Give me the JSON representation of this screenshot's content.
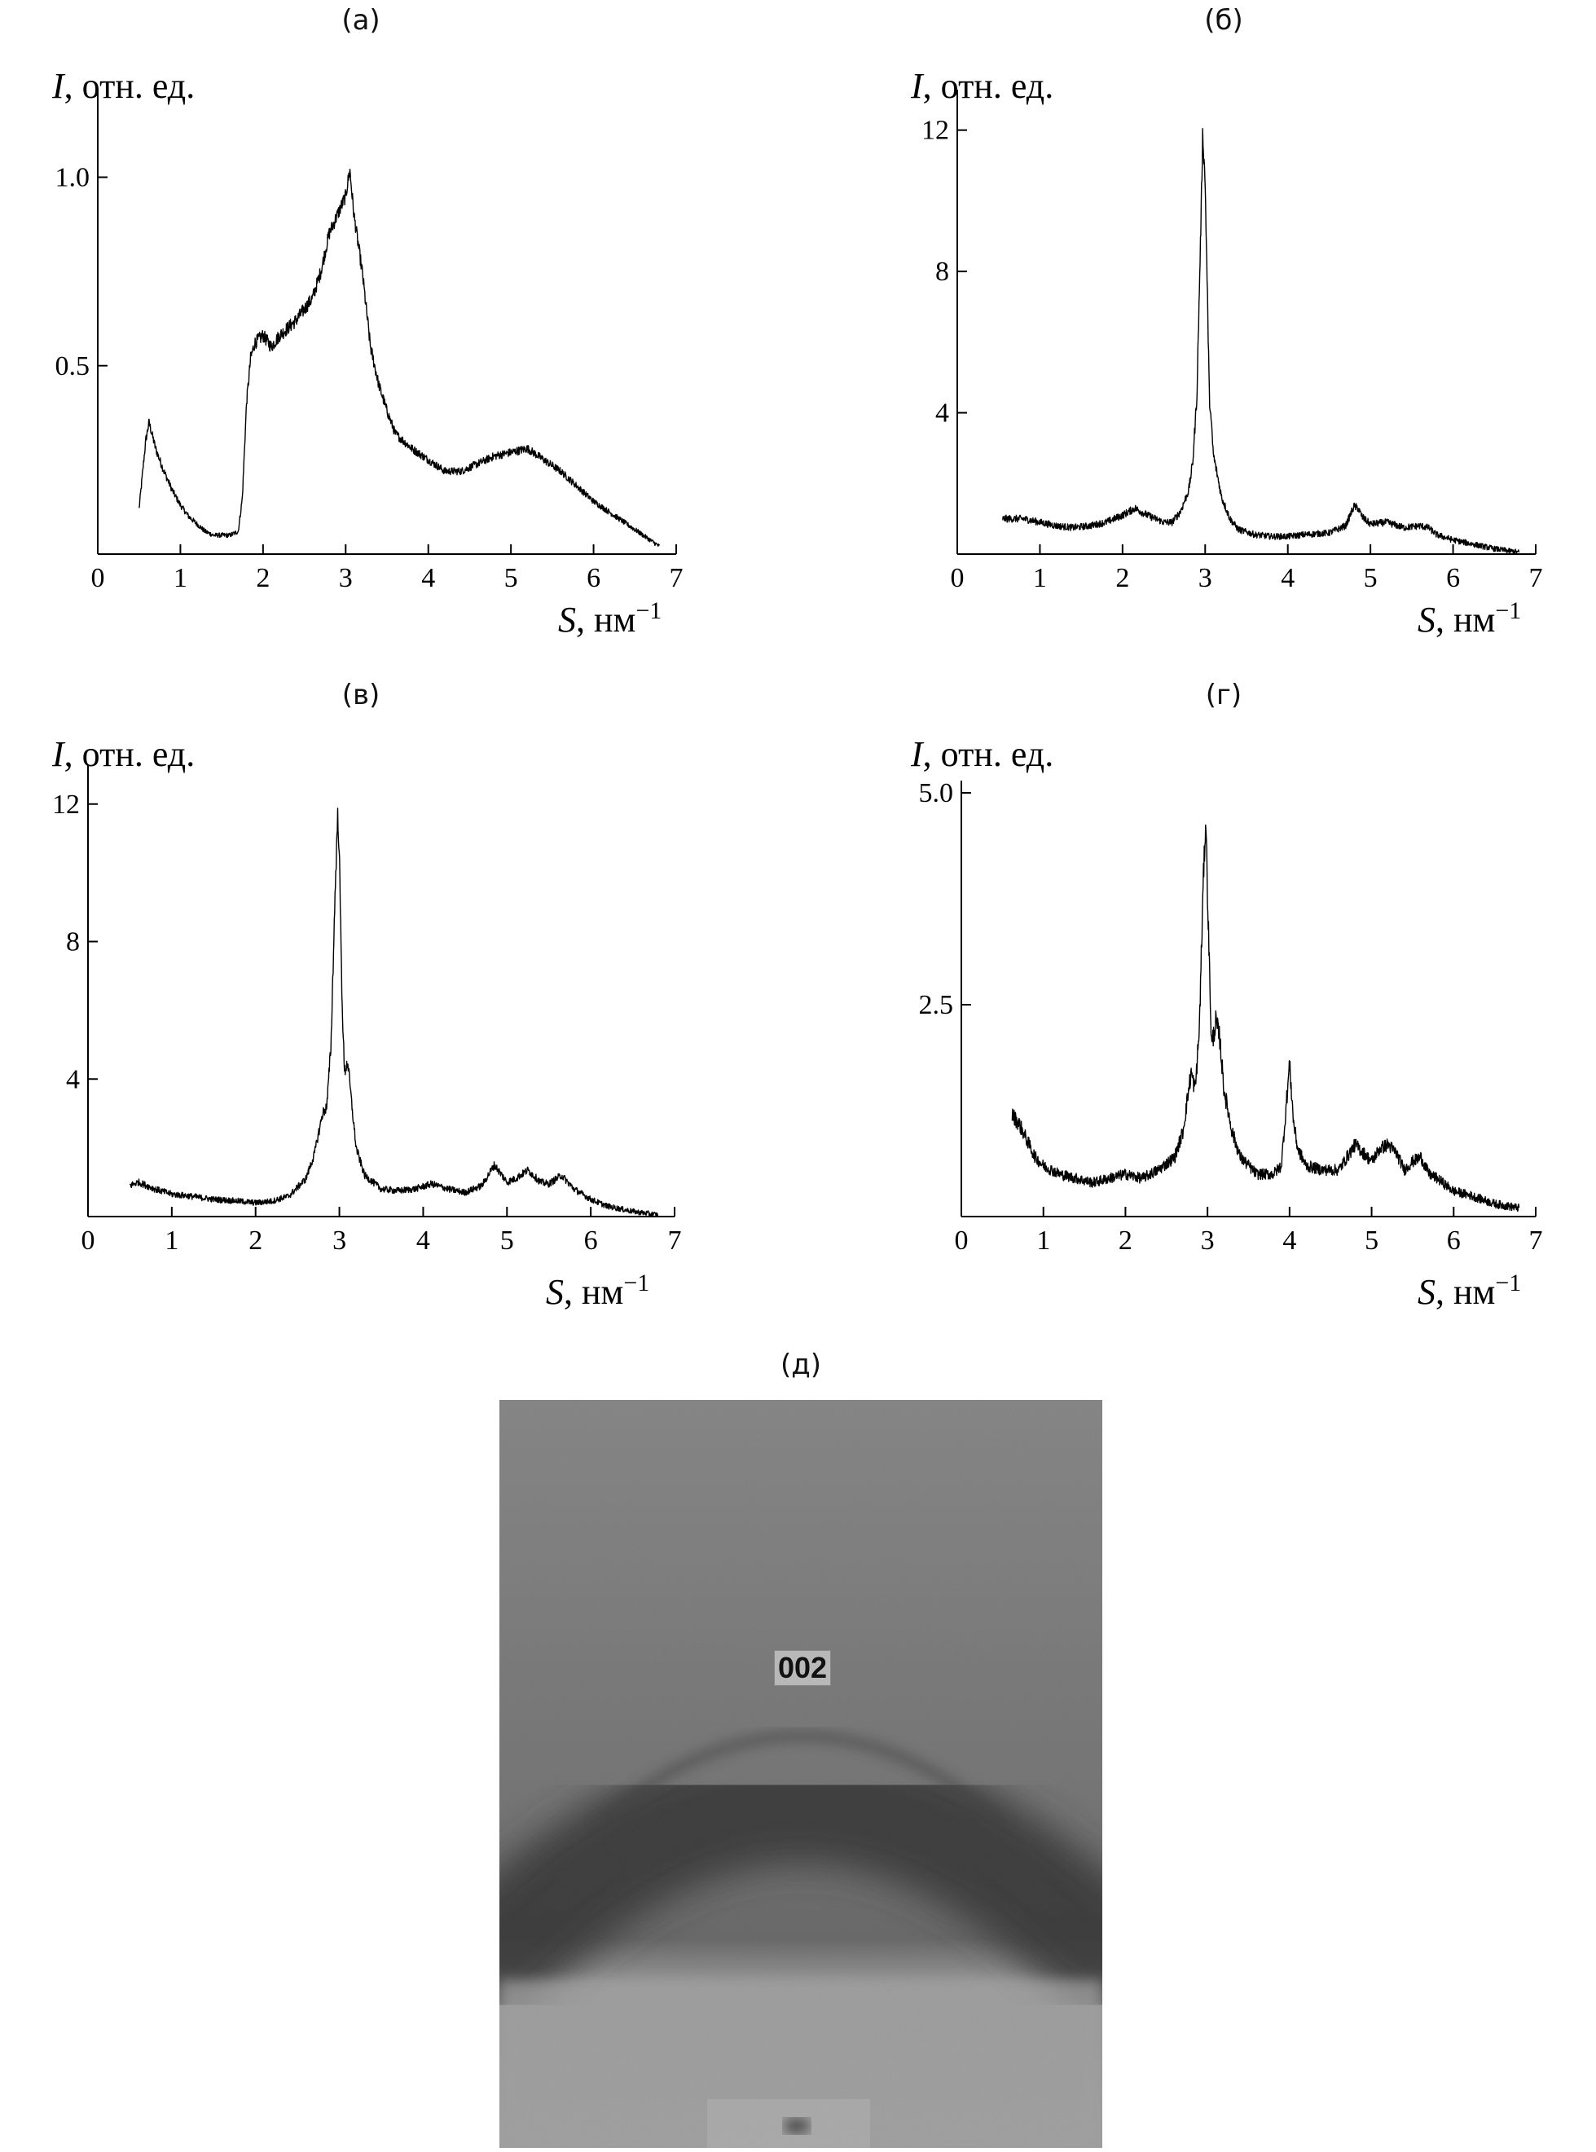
{
  "panels": [
    {
      "id": "a",
      "label": "(а)",
      "ylabel_italic": "I",
      "ylabel_rest": ", отн. ед.",
      "xlabel_italic": "S",
      "xlabel_rest": ", нм",
      "xlabel_sup": "−1",
      "chart_data": {
        "type": "line",
        "xlim": [
          0,
          7
        ],
        "ylim": [
          0,
          1.2
        ],
        "xticks": [
          "0",
          "1",
          "2",
          "3",
          "4",
          "5",
          "6",
          "7"
        ],
        "yticks": [
          {
            "v": 0.5,
            "label": "0.5"
          },
          {
            "v": 1.0,
            "label": "1.0"
          }
        ],
        "noise": 0.09,
        "series": [
          {
            "x": [
              0.5,
              0.58,
              0.62,
              0.7,
              0.8,
              0.9,
              1.0,
              1.1,
              1.2,
              1.3,
              1.4,
              1.5,
              1.6,
              1.7,
              1.75,
              1.8,
              1.85,
              1.9,
              2.0,
              2.1,
              2.2,
              2.3,
              2.4,
              2.5,
              2.6,
              2.7,
              2.8,
              2.9,
              3.0,
              3.05,
              3.1,
              3.2,
              3.3,
              3.4,
              3.5,
              3.6,
              3.7,
              3.8,
              4.0,
              4.2,
              4.4,
              4.6,
              4.8,
              5.0,
              5.2,
              5.4,
              5.6,
              5.8,
              6.0,
              6.2,
              6.4,
              6.6,
              6.8
            ],
            "y": [
              0.12,
              0.3,
              0.35,
              0.28,
              0.22,
              0.17,
              0.13,
              0.1,
              0.08,
              0.06,
              0.05,
              0.05,
              0.05,
              0.06,
              0.15,
              0.4,
              0.52,
              0.56,
              0.58,
              0.55,
              0.58,
              0.6,
              0.62,
              0.65,
              0.68,
              0.75,
              0.85,
              0.9,
              0.95,
              1.02,
              0.9,
              0.75,
              0.55,
              0.45,
              0.38,
              0.32,
              0.3,
              0.28,
              0.25,
              0.22,
              0.22,
              0.24,
              0.26,
              0.27,
              0.28,
              0.25,
              0.22,
              0.18,
              0.14,
              0.11,
              0.08,
              0.05,
              0.02
            ]
          }
        ]
      }
    },
    {
      "id": "b",
      "label": "(б)",
      "ylabel_italic": "I",
      "ylabel_rest": ", отн. ед.",
      "xlabel_italic": "S",
      "xlabel_rest": ", нм",
      "xlabel_sup": "−1",
      "chart_data": {
        "type": "line",
        "xlim": [
          0,
          7
        ],
        "ylim": [
          0,
          12.8
        ],
        "xticks": [
          "0",
          "1",
          "2",
          "3",
          "4",
          "5",
          "6",
          "7"
        ],
        "yticks": [
          {
            "v": 4,
            "label": "4"
          },
          {
            "v": 8,
            "label": "8"
          },
          {
            "v": 12,
            "label": "12"
          }
        ],
        "noise": 0.12,
        "series": [
          {
            "x": [
              0.55,
              0.8,
              1.0,
              1.2,
              1.4,
              1.6,
              1.8,
              2.0,
              2.15,
              2.3,
              2.5,
              2.6,
              2.7,
              2.8,
              2.85,
              2.9,
              2.95,
              2.97,
              3.0,
              3.03,
              3.05,
              3.1,
              3.15,
              3.2,
              3.3,
              3.4,
              3.6,
              3.8,
              4.0,
              4.2,
              4.5,
              4.7,
              4.8,
              4.85,
              4.9,
              5.0,
              5.2,
              5.4,
              5.6,
              5.7,
              5.8,
              6.0,
              6.2,
              6.5,
              6.8
            ],
            "y": [
              1.0,
              1.0,
              0.9,
              0.8,
              0.75,
              0.8,
              0.9,
              1.1,
              1.3,
              1.1,
              0.9,
              0.9,
              1.2,
              1.8,
              2.6,
              4.5,
              9.5,
              11.9,
              10.5,
              7.0,
              4.5,
              2.8,
              2.2,
              1.6,
              1.0,
              0.7,
              0.55,
              0.5,
              0.5,
              0.55,
              0.6,
              0.8,
              1.35,
              1.3,
              1.05,
              0.85,
              0.9,
              0.75,
              0.8,
              0.75,
              0.55,
              0.4,
              0.3,
              0.15,
              0.05
            ]
          }
        ]
      }
    },
    {
      "id": "c",
      "label": "(в)",
      "ylabel_italic": "I",
      "ylabel_rest": ", отн. ед.",
      "xlabel_italic": "S",
      "xlabel_rest": ", нм",
      "xlabel_sup": "−1",
      "chart_data": {
        "type": "line",
        "xlim": [
          0,
          7
        ],
        "ylim": [
          0,
          12.8
        ],
        "xticks": [
          "0",
          "1",
          "2",
          "3",
          "4",
          "5",
          "6",
          "7"
        ],
        "yticks": [
          {
            "v": 4,
            "label": "4"
          },
          {
            "v": 8,
            "label": "8"
          },
          {
            "v": 12,
            "label": "12"
          }
        ],
        "noise": 0.12,
        "series": [
          {
            "x": [
              0.5,
              0.6,
              0.8,
              1.0,
              1.2,
              1.5,
              1.8,
              2.0,
              2.2,
              2.4,
              2.6,
              2.7,
              2.8,
              2.85,
              2.9,
              2.95,
              2.98,
              3.0,
              3.03,
              3.06,
              3.1,
              3.15,
              3.2,
              3.3,
              3.5,
              3.7,
              3.9,
              4.1,
              4.3,
              4.5,
              4.7,
              4.85,
              5.0,
              5.1,
              5.25,
              5.4,
              5.5,
              5.65,
              5.8,
              6.0,
              6.2,
              6.5,
              6.8
            ],
            "y": [
              0.9,
              1.0,
              0.8,
              0.65,
              0.6,
              0.5,
              0.45,
              0.4,
              0.45,
              0.6,
              1.1,
              1.8,
              3.0,
              3.2,
              5.0,
              9.5,
              11.7,
              10.5,
              6.5,
              4.2,
              4.5,
              3.2,
              2.0,
              1.2,
              0.8,
              0.75,
              0.8,
              0.95,
              0.8,
              0.7,
              0.9,
              1.5,
              1.0,
              1.1,
              1.35,
              1.0,
              0.95,
              1.2,
              0.8,
              0.5,
              0.3,
              0.15,
              0.05
            ]
          }
        ]
      }
    },
    {
      "id": "d",
      "label": "(г)",
      "ylabel_italic": "I",
      "ylabel_rest": ", отн. ед.",
      "xlabel_italic": "S",
      "xlabel_rest": ", нм",
      "xlabel_sup": "−1",
      "chart_data": {
        "type": "line",
        "xlim": [
          0,
          7
        ],
        "ylim": [
          0,
          5.0
        ],
        "xticks": [
          "0",
          "1",
          "2",
          "3",
          "4",
          "5",
          "6",
          "7"
        ],
        "yticks": [
          {
            "v": 2.5,
            "label": "2.5"
          },
          {
            "v": 5.0,
            "label": "5.0"
          }
        ],
        "noise": 0.18,
        "series": [
          {
            "x": [
              0.62,
              0.7,
              0.8,
              0.9,
              1.0,
              1.2,
              1.4,
              1.6,
              1.8,
              2.0,
              2.2,
              2.4,
              2.6,
              2.7,
              2.8,
              2.85,
              2.9,
              2.95,
              2.98,
              3.0,
              3.05,
              3.1,
              3.15,
              3.2,
              3.3,
              3.4,
              3.6,
              3.8,
              3.9,
              3.95,
              4.0,
              4.05,
              4.1,
              4.2,
              4.4,
              4.6,
              4.8,
              4.9,
              5.0,
              5.1,
              5.2,
              5.3,
              5.4,
              5.5,
              5.6,
              5.7,
              5.8,
              6.0,
              6.2,
              6.5,
              6.8
            ],
            "y": [
              1.2,
              1.1,
              0.9,
              0.7,
              0.6,
              0.5,
              0.45,
              0.4,
              0.45,
              0.5,
              0.45,
              0.55,
              0.7,
              1.0,
              1.7,
              1.5,
              2.2,
              4.0,
              4.7,
              3.8,
              2.0,
              2.3,
              2.1,
              1.5,
              1.0,
              0.7,
              0.5,
              0.5,
              0.6,
              1.2,
              1.8,
              1.1,
              0.8,
              0.6,
              0.55,
              0.55,
              0.85,
              0.75,
              0.65,
              0.8,
              0.85,
              0.75,
              0.55,
              0.65,
              0.7,
              0.5,
              0.45,
              0.3,
              0.25,
              0.15,
              0.1
            ]
          }
        ]
      }
    }
  ],
  "photo": {
    "label": "(д)",
    "spot_label": "002"
  }
}
